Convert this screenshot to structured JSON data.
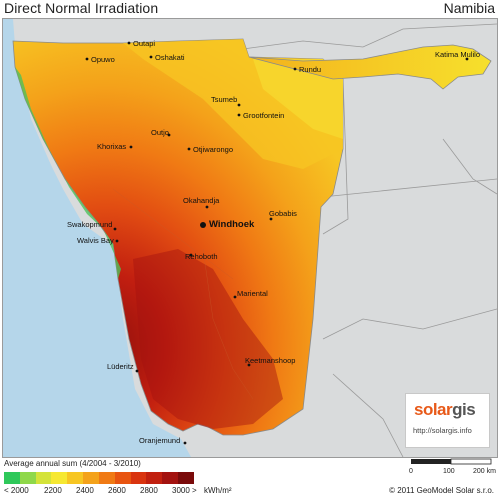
{
  "header": {
    "title": "Direct Normal Irradiation",
    "country": "Namibia"
  },
  "map": {
    "cities": [
      {
        "name": "Outapi"
      },
      {
        "name": "Opuwo"
      },
      {
        "name": "Oshakati"
      },
      {
        "name": "Rundu"
      },
      {
        "name": "Katima Mulilo"
      },
      {
        "name": "Tsumeb"
      },
      {
        "name": "Grootfontein"
      },
      {
        "name": "Outjo"
      },
      {
        "name": "Khorixas"
      },
      {
        "name": "Otjiwarongo"
      },
      {
        "name": "Okahandja"
      },
      {
        "name": "Windhoek",
        "capital": true
      },
      {
        "name": "Gobabis"
      },
      {
        "name": "Swakopmund"
      },
      {
        "name": "Walvis Bay"
      },
      {
        "name": "Rehoboth"
      },
      {
        "name": "Mariental"
      },
      {
        "name": "Keetmanshoop"
      },
      {
        "name": "Lüderitz"
      },
      {
        "name": "Oranjemund"
      }
    ],
    "colors": {
      "ocean": "#b5d6ea",
      "land": "#d9dbdc",
      "border": "#8a8a8a",
      "low_north": "#f5c820",
      "high_south": "#b01d12"
    }
  },
  "logo": {
    "brand_a": "solar",
    "brand_b": "gis",
    "url": "http://solargis.info"
  },
  "scale": {
    "ticks": [
      "0",
      "100",
      "200 km"
    ]
  },
  "legend": {
    "title": "Average annual sum (4/2004 - 3/2010)",
    "labels": [
      "< 2000",
      "2200",
      "2400",
      "2600",
      "2800",
      "3000 >",
      "kWh/m²"
    ],
    "colors": [
      "#2ec85a",
      "#8fd84a",
      "#d4e33a",
      "#f6e832",
      "#f7c623",
      "#f4a21a",
      "#f07a14",
      "#e85410",
      "#d9340f",
      "#c1200f",
      "#a3120f",
      "#7a0a0a"
    ]
  },
  "copyright": "© 2011 GeoModel Solar s.r.o."
}
